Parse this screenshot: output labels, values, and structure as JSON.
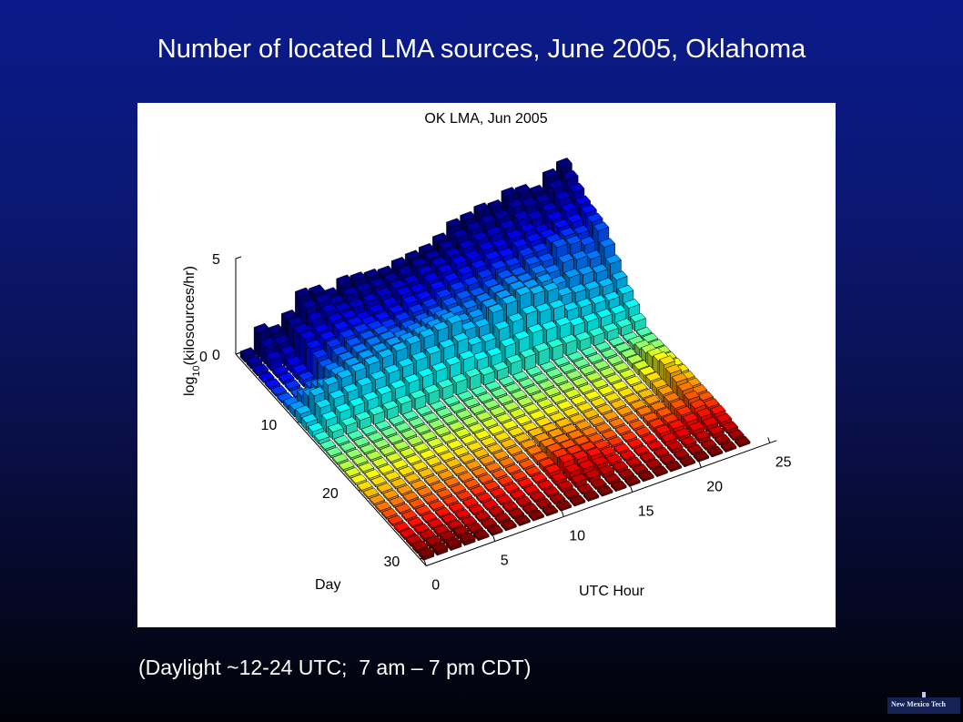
{
  "slide": {
    "title": "Number of located LMA sources, June 2005, Oklahoma",
    "caption": "(Daylight ~12-24 UTC;  7 am – 7 pm CDT)",
    "logo_text": "New Mexico Tech"
  },
  "chart_data": {
    "type": "bar3d",
    "title": "OK LMA, Jun 2005",
    "xlabel": "UTC Hour",
    "ylabel": "Day",
    "zlabel_main": "log",
    "zlabel_sub": "10",
    "zlabel_rest": "(kilosources/hr)",
    "x_ticks": [
      "0",
      "5",
      "10",
      "15",
      "20",
      "25"
    ],
    "y_ticks": [
      "0",
      "10",
      "20",
      "30"
    ],
    "z_ticks": [
      "0",
      "5"
    ],
    "xlim": [
      0,
      25
    ],
    "ylim": [
      0,
      30
    ],
    "zlim": [
      0,
      5
    ],
    "hours": [
      0,
      1,
      2,
      3,
      4,
      5,
      6,
      7,
      8,
      9,
      10,
      11,
      12,
      13,
      14,
      15,
      16,
      17,
      18,
      19,
      20,
      21,
      22,
      23
    ],
    "days": [
      1,
      2,
      3,
      4,
      5,
      6,
      7,
      8,
      9,
      10,
      11,
      12,
      13,
      14,
      15,
      16,
      17,
      18,
      19,
      20,
      21,
      22,
      23,
      24,
      25,
      26,
      27,
      28,
      29,
      30
    ],
    "series": [
      {
        "day": 1,
        "values": [
          0.3,
          1.3,
          1.0,
          1.5,
          2.4,
          2.3,
          1.9,
          2.3,
          2.2,
          2.1,
          2.0,
          2.2,
          2.3,
          2.4,
          2.7,
          3.2,
          3.3,
          3.5,
          3.4,
          3.8,
          3.7,
          3.4,
          4.0,
          4.3
        ]
      },
      {
        "day": 4,
        "values": [
          0.1,
          0.2,
          0.4,
          1.5,
          1.6,
          1.9,
          1.8,
          1.5,
          1.6,
          1.7,
          2.0,
          1.9,
          2.2,
          2.4,
          2.6,
          2.6,
          2.8,
          2.7,
          2.9,
          3.0,
          2.7,
          3.1,
          3.3,
          3.4
        ]
      },
      {
        "day": 7,
        "values": [
          0.1,
          0.1,
          0.3,
          1.1,
          1.5,
          1.7,
          1.8,
          1.8,
          1.5,
          1.6,
          1.7,
          1.8,
          2.0,
          2.1,
          2.0,
          2.2,
          2.4,
          2.3,
          2.6,
          2.5,
          3.0,
          2.9,
          2.6,
          3.1
        ]
      },
      {
        "day": 10,
        "values": [
          0.5,
          1.2,
          1.5,
          1.6,
          1.7,
          1.8,
          1.9,
          2.0,
          2.1,
          2.2,
          2.3,
          2.4,
          1.8,
          1.7,
          2.2,
          2.4,
          2.6,
          2.4,
          2.3,
          1.8,
          1.7,
          1.6,
          1.5,
          1.6
        ]
      }
    ],
    "heat_series": [
      {
        "day": 14,
        "values": [
          0.1,
          0.1,
          0.1,
          0.1,
          0.1,
          0.1,
          0.1,
          0.1,
          0.1,
          0.1,
          0.1,
          0.1,
          0.1,
          0.1,
          0.1,
          0.1,
          0.1,
          0.1,
          0.1,
          0.1,
          0.1,
          0.1,
          0.1,
          0.1
        ]
      },
      {
        "day": 20,
        "values": [
          0.1,
          0.1,
          0.1,
          0.1,
          0.1,
          0.1,
          0.1,
          0.1,
          0.1,
          0.1,
          0.1,
          0.1,
          0.1,
          0.1,
          0.1,
          0.1,
          0.1,
          0.1,
          0.1,
          0.1,
          0.1,
          0.4,
          1.0,
          0.3
        ]
      },
      {
        "day": 26,
        "values": [
          0.1,
          0.1,
          0.1,
          0.1,
          0.1,
          0.1,
          0.1,
          0.1,
          0.1,
          0.1,
          0.1,
          0.3,
          0.6,
          0.5,
          0.4,
          0.2,
          0.1,
          0.1,
          0.1,
          0.3,
          0.3,
          0.4,
          0.4,
          0.3
        ]
      },
      {
        "day": 29,
        "values": [
          0.2,
          0.2,
          0.2,
          0.2,
          0.1,
          0.1,
          0.1,
          0.1,
          0.1,
          0.1,
          0.1,
          0.1,
          0.1,
          0.1,
          0.1,
          0.1,
          0.1,
          0.1,
          0.1,
          0.1,
          0.1,
          0.1,
          0.1,
          0.1
        ]
      }
    ],
    "colormap": "jet (by day)",
    "grid": true
  }
}
